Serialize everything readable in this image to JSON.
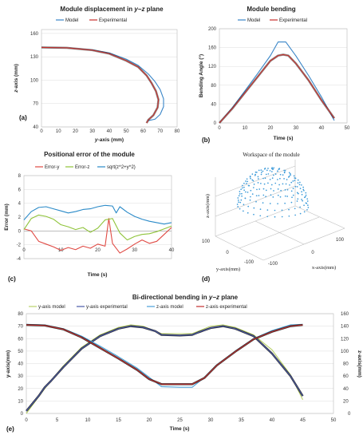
{
  "colors": {
    "model": "#3a86c8",
    "experimental": "#c9302c",
    "error_y": "#e04a44",
    "error_z": "#8fc33a",
    "error_mag": "#2a8ac8",
    "y_model": "#b9d16a",
    "y_experimental": "#4a5aa8",
    "z_model": "#4aa0d8",
    "z_experimental": "#c43030",
    "experimental_core": "#2b2b2b",
    "workspace_points": "#3a9ad9"
  },
  "chart_data": [
    {
      "panel": "(a)",
      "type": "line",
      "title_prefix": "Module displacement in ",
      "title_math": "y−z",
      "title_suffix": " plane",
      "xlabel_math": "y",
      "xlabel_rest": "-axis (mm)",
      "ylabel_math": "z",
      "ylabel_rest": "-axis (mm)",
      "xlim": [
        0,
        80
      ],
      "ylim": [
        40,
        165
      ],
      "xticks": [
        "0",
        "10",
        "20",
        "30",
        "40",
        "50",
        "60",
        "70",
        "80"
      ],
      "yticks": [
        "40",
        "70",
        "100",
        "130",
        "160"
      ],
      "legend": [
        "Model",
        "Experimental"
      ],
      "series": [
        {
          "name": "Model",
          "x": [
            0,
            15,
            30,
            40,
            50,
            57,
            63,
            67,
            70,
            72,
            72,
            70,
            67,
            63
          ],
          "y": [
            142,
            141.5,
            139,
            135,
            127,
            119,
            108,
            98,
            88,
            76,
            66,
            56,
            50,
            48
          ]
        },
        {
          "name": "Experimental",
          "x": [
            0,
            15,
            30,
            40,
            50,
            57,
            62,
            65,
            67.5,
            69,
            68.5,
            66,
            63,
            62
          ],
          "y": [
            142,
            141.5,
            138.5,
            134,
            125,
            117,
            106,
            96,
            86,
            75,
            65,
            55,
            49,
            45
          ]
        }
      ]
    },
    {
      "panel": "(b)",
      "type": "line",
      "title": "Module bending",
      "xlabel": "Time (s)",
      "ylabel": "Bending Angle (°)",
      "xlim": [
        0,
        50
      ],
      "ylim": [
        0,
        200
      ],
      "xticks": [
        "0",
        "10",
        "20",
        "30",
        "40",
        "50"
      ],
      "yticks": [
        "0",
        "40",
        "80",
        "120",
        "160",
        "200"
      ],
      "legend": [
        "Model",
        "Experimental"
      ],
      "series": [
        {
          "name": "Model",
          "x": [
            0,
            5,
            10,
            15,
            20,
            23,
            26,
            30,
            35,
            40,
            45
          ],
          "y": [
            0,
            32,
            68,
            105,
            143,
            172,
            172,
            142,
            100,
            55,
            5
          ]
        },
        {
          "name": "Experimental",
          "x": [
            0,
            5,
            10,
            15,
            20,
            23,
            25,
            27,
            30,
            35,
            40,
            45
          ],
          "y": [
            0,
            30,
            64,
            98,
            132,
            143,
            145,
            143,
            126,
            90,
            48,
            10
          ]
        }
      ]
    },
    {
      "panel": "(c)",
      "type": "line",
      "title": "Positional error of the module",
      "xlabel": "Time (s)",
      "ylabel": "Error (mm)",
      "xlim": [
        0,
        40
      ],
      "ylim": [
        -4,
        8
      ],
      "xticks": [
        "0",
        "10",
        "20",
        "30",
        "40"
      ],
      "yticks": [
        "-4",
        "-2",
        "0",
        "2",
        "4",
        "6",
        "8"
      ],
      "legend": [
        "Error-y",
        "Error-z",
        "sqrt(z^2+y^2)"
      ],
      "series": [
        {
          "name": "Error-y",
          "x": [
            0,
            2,
            4,
            6,
            8,
            10,
            12,
            14,
            16,
            18,
            20,
            22,
            23,
            24,
            26,
            28,
            30,
            32,
            34,
            36,
            38,
            40
          ],
          "y": [
            0.3,
            0,
            -1.5,
            -1.9,
            -2.3,
            -2.8,
            -2.4,
            -2.7,
            -2.2,
            -2.5,
            -1.9,
            -2.2,
            1.8,
            -1.8,
            -3.2,
            -2.6,
            -1.9,
            -1.3,
            -1.8,
            -1.5,
            -0.5,
            0.5
          ]
        },
        {
          "name": "Error-z",
          "x": [
            0,
            2,
            4,
            6,
            8,
            10,
            12,
            14,
            16,
            18,
            20,
            22,
            24,
            26,
            28,
            30,
            32,
            34,
            36,
            38,
            40
          ],
          "y": [
            0.2,
            1.8,
            2.3,
            2.1,
            1.7,
            0.9,
            0.6,
            0.2,
            0.5,
            -0.2,
            0.4,
            1.6,
            1.8,
            -0.3,
            -1.3,
            -0.8,
            -0.5,
            -0.4,
            -0.1,
            0.3,
            0.7
          ]
        },
        {
          "name": "sqrt(z^2+y^2)",
          "x": [
            0,
            2,
            4,
            6,
            8,
            10,
            12,
            14,
            16,
            18,
            20,
            22,
            24,
            25,
            26,
            28,
            30,
            32,
            34,
            36,
            38,
            40
          ],
          "y": [
            1.6,
            2.8,
            3.4,
            3.5,
            3.2,
            2.9,
            2.6,
            2.8,
            3.1,
            3.2,
            3.5,
            3.7,
            3.6,
            2.6,
            3.5,
            2.7,
            2.1,
            1.7,
            1.4,
            1.2,
            1.0,
            1.2
          ]
        }
      ]
    },
    {
      "panel": "(d)",
      "type": "scatter",
      "title": "Workspace of the module",
      "xlabel": "x-axis(mm)",
      "ylabel": "y-axis(mm)",
      "zlabel": "z-axis(mm)",
      "x_ticks": [
        "-100",
        "0",
        "100"
      ],
      "y_ticks": [
        "-100",
        "0",
        "100"
      ],
      "shape": "hemisphere"
    },
    {
      "panel": "(e)",
      "type": "line",
      "title_prefix": "Bi-directional bending in ",
      "title_math": "y−z",
      "title_suffix": " plane",
      "xlabel": "Time (s)",
      "ylabel": "y-axis(mm)",
      "y2label": "z-axis(mm)",
      "xlim": [
        0,
        50
      ],
      "ylim": [
        0,
        80
      ],
      "y2lim": [
        0,
        160
      ],
      "xticks": [
        "0",
        "5",
        "10",
        "15",
        "20",
        "25",
        "30",
        "35",
        "40",
        "45",
        "50"
      ],
      "yticks": [
        "0",
        "10",
        "20",
        "30",
        "40",
        "50",
        "60",
        "70",
        "80"
      ],
      "y2ticks": [
        "0",
        "20",
        "40",
        "60",
        "80",
        "100",
        "120",
        "140",
        "160"
      ],
      "legend": [
        "y-axis model",
        "y-axis experimental",
        "z-axis model",
        "z-axis experimental"
      ],
      "series": [
        {
          "name": "y-axis model",
          "axis": "y",
          "x": [
            0,
            3,
            6,
            9,
            12,
            15,
            17,
            19,
            21,
            22,
            25,
            27,
            28,
            30,
            32,
            34,
            37,
            40,
            43,
            45
          ],
          "y": [
            0,
            20,
            38,
            53,
            63,
            69,
            71,
            70,
            66,
            64,
            64,
            64,
            66,
            70,
            71,
            69,
            63,
            51,
            31,
            11
          ]
        },
        {
          "name": "y-axis experimental",
          "axis": "y",
          "x": [
            0,
            2,
            3,
            4,
            6,
            9,
            12,
            15,
            17,
            19,
            21,
            22,
            25,
            27,
            28,
            30,
            32,
            34,
            37,
            40,
            43,
            45
          ],
          "y": [
            2,
            14,
            21,
            26,
            37,
            52,
            62,
            68,
            70,
            69,
            66,
            63,
            62.5,
            63,
            65,
            68.5,
            70,
            68,
            62,
            48,
            30,
            14
          ]
        },
        {
          "name": "z-axis model",
          "axis": "z",
          "x": [
            0,
            3,
            6,
            9,
            12,
            15,
            18,
            20,
            22,
            25,
            27,
            29,
            31,
            34,
            37,
            40,
            43,
            45
          ],
          "y": [
            143,
            142,
            136,
            124,
            108,
            91,
            73,
            58,
            43,
            42,
            42,
            58,
            78,
            100,
            120,
            133,
            142,
            143
          ]
        },
        {
          "name": "z-axis experimental",
          "axis": "z",
          "x": [
            0,
            3,
            6,
            9,
            12,
            15,
            18,
            20,
            22,
            25,
            27,
            29,
            31,
            34,
            37,
            40,
            43,
            45
          ],
          "y": [
            142,
            141,
            135,
            122,
            105,
            88,
            70,
            55,
            47,
            47,
            47,
            57,
            77,
            99,
            119,
            131,
            140,
            142
          ]
        }
      ]
    }
  ]
}
